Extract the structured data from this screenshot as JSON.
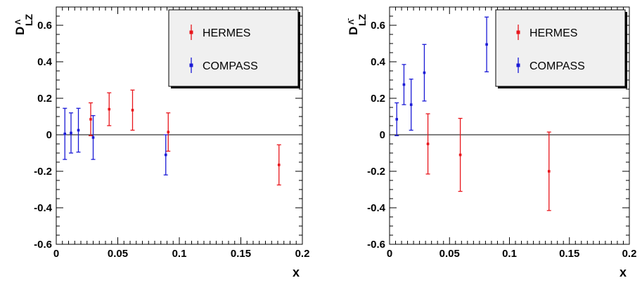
{
  "chart_data": [
    {
      "type": "scatter",
      "ylabel": "D",
      "ylabel_sub": "LZ",
      "ylabel_sup": "Λ",
      "xlabel": "x",
      "xlim": [
        0,
        0.2
      ],
      "ylim": [
        -0.6,
        0.7
      ],
      "xticks": [
        0,
        0.05,
        0.1,
        0.15,
        0.2
      ],
      "xtick_labels": [
        "0",
        "0.05",
        "0.1",
        "0.15",
        "0.2"
      ],
      "yticks": [
        -0.6,
        -0.4,
        -0.2,
        0,
        0.2,
        0.4,
        0.6
      ],
      "ytick_labels": [
        "-0.6",
        "-0.4",
        "-0.2",
        "0",
        "0.2",
        "0.4",
        "0.6"
      ],
      "legend_position": "top-right",
      "series": [
        {
          "name": "HERMES",
          "color": "#e8161c",
          "points": [
            {
              "x": 0.028,
              "y": 0.085,
              "yerr": 0.09
            },
            {
              "x": 0.043,
              "y": 0.14,
              "yerr": 0.09
            },
            {
              "x": 0.062,
              "y": 0.135,
              "yerr": 0.11
            },
            {
              "x": 0.091,
              "y": 0.015,
              "yerr": 0.105
            },
            {
              "x": 0.181,
              "y": -0.165,
              "yerr": 0.11
            }
          ]
        },
        {
          "name": "COMPASS",
          "color": "#1a1ad6",
          "points": [
            {
              "x": 0.007,
              "y": 0.005,
              "yerr": 0.14
            },
            {
              "x": 0.012,
              "y": 0.01,
              "yerr": 0.11
            },
            {
              "x": 0.018,
              "y": 0.025,
              "yerr": 0.12
            },
            {
              "x": 0.03,
              "y": -0.015,
              "yerr": 0.12
            },
            {
              "x": 0.089,
              "y": -0.11,
              "yerr": 0.11
            }
          ]
        }
      ]
    },
    {
      "type": "scatter",
      "ylabel": "D",
      "ylabel_sub": "LZ",
      "ylabel_sup": "Λ̄",
      "xlabel": "x",
      "xlim": [
        0,
        0.2
      ],
      "ylim": [
        -0.6,
        0.7
      ],
      "xticks": [
        0,
        0.05,
        0.1,
        0.15,
        0.2
      ],
      "xtick_labels": [
        "0",
        "0.05",
        "0.1",
        "0.15",
        "0.2"
      ],
      "yticks": [
        -0.6,
        -0.4,
        -0.2,
        0,
        0.2,
        0.4,
        0.6
      ],
      "ytick_labels": [
        "-0.6",
        "-0.4",
        "-0.2",
        "0",
        "0.2",
        "0.4",
        "0.6"
      ],
      "legend_position": "top-right",
      "series": [
        {
          "name": "HERMES",
          "color": "#e8161c",
          "points": [
            {
              "x": 0.032,
              "y": -0.05,
              "yerr": 0.165
            },
            {
              "x": 0.059,
              "y": -0.11,
              "yerr": 0.2
            },
            {
              "x": 0.133,
              "y": -0.2,
              "yerr": 0.215
            }
          ]
        },
        {
          "name": "COMPASS",
          "color": "#1a1ad6",
          "points": [
            {
              "x": 0.006,
              "y": 0.085,
              "yerr": 0.09
            },
            {
              "x": 0.012,
              "y": 0.275,
              "yerr": 0.11
            },
            {
              "x": 0.018,
              "y": 0.165,
              "yerr": 0.14
            },
            {
              "x": 0.029,
              "y": 0.34,
              "yerr": 0.155
            },
            {
              "x": 0.081,
              "y": 0.495,
              "yerr": 0.15
            }
          ]
        }
      ]
    }
  ]
}
